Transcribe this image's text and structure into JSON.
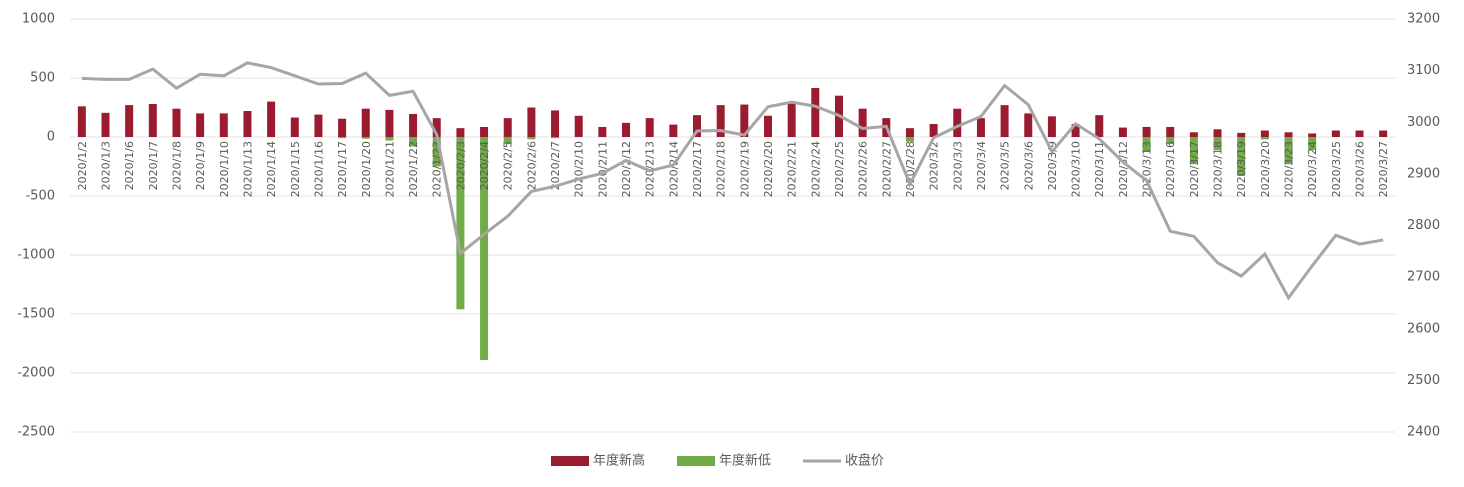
{
  "chart_data": {
    "type": "bar-line",
    "categories": [
      "2020/1/2",
      "2020/1/3",
      "2020/1/6",
      "2020/1/7",
      "2020/1/8",
      "2020/1/9",
      "2020/1/10",
      "2020/1/13",
      "2020/1/14",
      "2020/1/15",
      "2020/1/16",
      "2020/1/17",
      "2020/1/20",
      "2020/1/21",
      "2020/1/22",
      "2020/1/23",
      "2020/2/3",
      "2020/2/4",
      "2020/2/5",
      "2020/2/6",
      "2020/2/7",
      "2020/2/10",
      "2020/2/11",
      "2020/2/12",
      "2020/2/13",
      "2020/2/14",
      "2020/2/17",
      "2020/2/18",
      "2020/2/19",
      "2020/2/20",
      "2020/2/21",
      "2020/2/24",
      "2020/2/25",
      "2020/2/26",
      "2020/2/27",
      "2020/2/28",
      "2020/3/2",
      "2020/3/3",
      "2020/3/4",
      "2020/3/5",
      "2020/3/6",
      "2020/3/9",
      "2020/3/10",
      "2020/3/11",
      "2020/3/12",
      "2020/3/13",
      "2020/3/16",
      "2020/3/17",
      "2020/3/18",
      "2020/3/19",
      "2020/3/20",
      "2020/3/23",
      "2020/3/24",
      "2020/3/25",
      "2020/3/26",
      "2020/3/27"
    ],
    "series": [
      {
        "name": "年度新高",
        "type": "bar",
        "color": "#9b1b30",
        "values": [
          260,
          205,
          270,
          280,
          240,
          200,
          200,
          220,
          300,
          165,
          190,
          155,
          240,
          230,
          195,
          160,
          75,
          85,
          160,
          250,
          225,
          180,
          85,
          120,
          160,
          105,
          185,
          270,
          275,
          180,
          290,
          415,
          350,
          240,
          160,
          75,
          110,
          240,
          160,
          270,
          200,
          175,
          110,
          185,
          80,
          85,
          85,
          40,
          65,
          35,
          55,
          40,
          30,
          55,
          55,
          55
        ]
      },
      {
        "name": "年度新低",
        "type": "bar",
        "color": "#70ad47",
        "values": [
          0,
          0,
          0,
          0,
          0,
          0,
          0,
          0,
          0,
          0,
          0,
          -10,
          -15,
          -30,
          -80,
          -250,
          -1460,
          -1890,
          -60,
          -20,
          -10,
          0,
          0,
          0,
          0,
          0,
          0,
          0,
          0,
          0,
          0,
          0,
          0,
          0,
          0,
          -40,
          0,
          0,
          0,
          0,
          0,
          0,
          0,
          0,
          0,
          -120,
          -60,
          -230,
          -110,
          -330,
          -20,
          -230,
          -110,
          0,
          0,
          0
        ]
      },
      {
        "name": "收盘价",
        "type": "line",
        "axis": "y2",
        "color": "#a6a6a6",
        "values": [
          3085,
          3083,
          3083,
          3103,
          3066,
          3093,
          3090,
          3115,
          3106,
          3090,
          3074,
          3075,
          3095,
          3052,
          3060,
          2976,
          2746,
          2783,
          2818,
          2866,
          2876,
          2890,
          2901,
          2926,
          2906,
          2917,
          2983,
          2984,
          2975,
          3030,
          3039,
          3031,
          3013,
          2988,
          2992,
          2880,
          2970,
          2992,
          3011,
          3071,
          3034,
          2943,
          2997,
          2968,
          2923,
          2887,
          2789,
          2779,
          2728,
          2702,
          2745,
          2660,
          2722,
          2781,
          2764,
          2772
        ]
      }
    ],
    "ylim": [
      -2500,
      1000
    ],
    "yticks": [
      -2500,
      -2000,
      -1500,
      -1000,
      -500,
      0,
      500,
      1000
    ],
    "y2lim": [
      2400,
      3200
    ],
    "y2ticks": [
      2400,
      2500,
      2600,
      2700,
      2800,
      2900,
      3000,
      3100,
      3200
    ],
    "grid": true,
    "legend": "bottom"
  }
}
